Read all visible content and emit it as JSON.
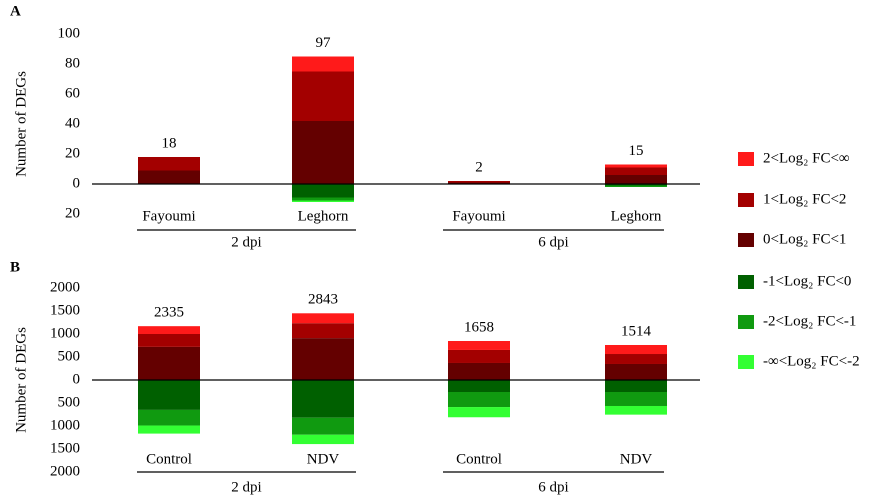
{
  "chart_data": [
    {
      "type": "bar",
      "panel_label": "A",
      "ylabel": "Number of DEGs",
      "categories": [
        "Fayoumi",
        "Leghorn",
        "Fayoumi",
        "Leghorn"
      ],
      "groups": [
        "2 dpi",
        "6 dpi"
      ],
      "totals": [
        18,
        97,
        2,
        15
      ],
      "ylim": [
        -20,
        100
      ],
      "yticks": [
        100,
        80,
        60,
        40,
        20,
        0,
        {
          "value": -20,
          "label": "20"
        }
      ],
      "series": [
        {
          "name": "2<Log₂ FC<∞",
          "color": "#ff1a1a",
          "values": [
            0,
            10,
            0,
            2
          ]
        },
        {
          "name": "1<Log₂ FC<2",
          "color": "#a30000",
          "values": [
            9,
            33,
            1,
            5
          ]
        },
        {
          "name": "0<Log₂ FC<1",
          "color": "#640000",
          "values": [
            9,
            42,
            1,
            6
          ]
        },
        {
          "name": "-1<Log₂ FC<0",
          "color": "#006000",
          "values": [
            0,
            -9,
            0,
            -1
          ]
        },
        {
          "name": "-2<Log₂ FC<-1",
          "color": "#109a10",
          "values": [
            0,
            -2,
            0,
            -1
          ]
        },
        {
          "name": "-∞<Log₂ FC<-2",
          "color": "#33ff33",
          "values": [
            0,
            -1,
            0,
            0
          ]
        }
      ]
    },
    {
      "type": "bar",
      "panel_label": "B",
      "ylabel": "Number of DEGs",
      "categories": [
        "Control",
        "NDV",
        "Control",
        "NDV"
      ],
      "groups": [
        "2 dpi",
        "6 dpi"
      ],
      "totals": [
        2335,
        2843,
        1658,
        1514
      ],
      "ylim": [
        -2000,
        2000
      ],
      "yticks": [
        2000,
        1500,
        1000,
        500,
        0,
        {
          "value": -500,
          "label": "500"
        },
        {
          "value": -1000,
          "label": "1000"
        },
        {
          "value": -1500,
          "label": "1500"
        },
        {
          "value": -2000,
          "label": "2000"
        }
      ],
      "series": [
        {
          "color": "#ff1a1a",
          "values": [
            170,
            215,
            195,
            196
          ]
        },
        {
          "color": "#a30000",
          "values": [
            280,
            325,
            283,
            217
          ]
        },
        {
          "color": "#640000",
          "values": [
            720,
            910,
            370,
            348
          ]
        },
        {
          "color": "#006000",
          "values": [
            -650,
            -820,
            -261,
            -261
          ]
        },
        {
          "color": "#109a10",
          "values": [
            -340,
            -370,
            -327,
            -304
          ]
        },
        {
          "color": "#33ff33",
          "values": [
            -175,
            -203,
            -222,
            -188
          ]
        }
      ]
    }
  ]
}
